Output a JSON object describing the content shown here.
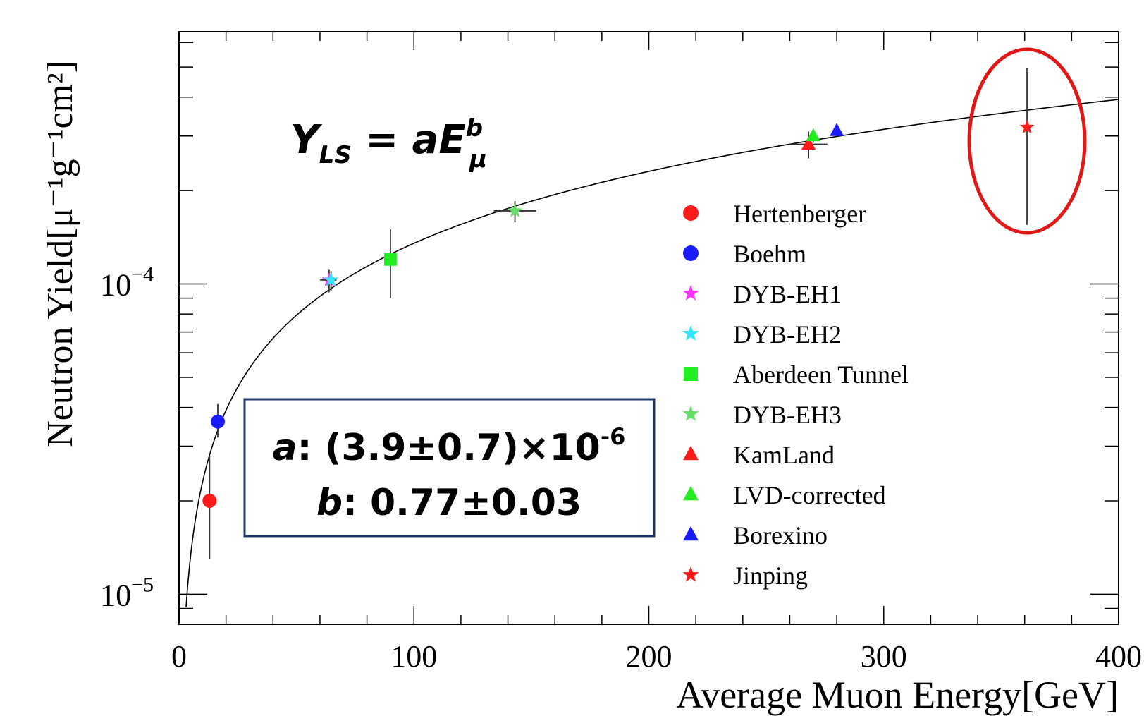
{
  "chart_data": {
    "type": "scatter",
    "xlabel": "Average Muon Energy[GeV]",
    "ylabel": "Neutron Yield[μ⁻¹g⁻¹cm²]",
    "xlim": [
      0,
      400
    ],
    "ylim": [
      8e-06,
      0.00065
    ],
    "yscale": "log",
    "xticks": [
      {
        "value": 0,
        "label": "0"
      },
      {
        "value": 100,
        "label": "100"
      },
      {
        "value": 200,
        "label": "200"
      },
      {
        "value": 300,
        "label": "300"
      },
      {
        "value": 400,
        "label": "400"
      }
    ],
    "yticks": [
      {
        "value": 0.0001,
        "mant": "10",
        "exp": "−4"
      },
      {
        "value": 1e-05,
        "mant": "10",
        "exp": "−5"
      }
    ],
    "grid": false,
    "legend_position": "right-center",
    "fit": {
      "a": 3.9e-06,
      "b": 0.77
    },
    "formula": {
      "lhs": "Y",
      "lhs_sub": "LS",
      "eq": " = ",
      "rhs": "aE",
      "rhs_sup": "b",
      "rhs_sub": "μ"
    },
    "fit_box": {
      "line1": {
        "name": "a",
        "sep": ": ",
        "value": "(3.9±0.7)×10",
        "exp": "-6"
      },
      "line2": {
        "name": "b",
        "sep": ": ",
        "value": "0.77±0.03"
      }
    },
    "series": [
      {
        "name": "Hertenberger",
        "color": "#ff1a1a",
        "marker": "circle",
        "x": 13,
        "y": 2e-05,
        "yerr": [
          1.3e-05,
          2.8e-05
        ],
        "xerr": null
      },
      {
        "name": "Boehm",
        "color": "#1a1aff",
        "marker": "circle",
        "x": 16.5,
        "y": 3.6e-05,
        "yerr": [
          3.2e-05,
          4.1e-05
        ],
        "xerr": null
      },
      {
        "name": "DYB-EH1",
        "color": "#ff33ff",
        "marker": "star",
        "x": 63.9,
        "y": 0.000103,
        "yerr": [
          9.4e-05,
          0.000111
        ],
        "xerr": [
          60,
          67
        ]
      },
      {
        "name": "DYB-EH2",
        "color": "#33e6ff",
        "marker": "star",
        "x": 64.7,
        "y": 0.000103,
        "yerr": [
          9.5e-05,
          0.00011
        ],
        "xerr": [
          62,
          67
        ]
      },
      {
        "name": "Aberdeen Tunnel",
        "color": "#22ee22",
        "marker": "square",
        "x": 90,
        "y": 0.00012,
        "yerr": [
          9e-05,
          0.00015
        ],
        "xerr": null
      },
      {
        "name": "DYB-EH3",
        "color": "#66dd66",
        "marker": "star",
        "x": 143,
        "y": 0.000172,
        "yerr": [
          0.000158,
          0.000185
        ],
        "xerr": [
          134,
          152
        ]
      },
      {
        "name": "KamLand",
        "color": "#ff1a1a",
        "marker": "triangle",
        "x": 268,
        "y": 0.000282,
        "yerr": [
          0.000254,
          0.00031
        ],
        "xerr": [
          260,
          276
        ]
      },
      {
        "name": "LVD-corrected",
        "color": "#22ee22",
        "marker": "triangle",
        "x": 270,
        "y": 0.0003,
        "yerr": [
          0.000285,
          0.000315
        ],
        "xerr": null
      },
      {
        "name": "Borexino",
        "color": "#1a1aff",
        "marker": "triangle",
        "x": 280,
        "y": 0.000312,
        "yerr": [
          0.000305,
          0.00032
        ],
        "xerr": null
      },
      {
        "name": "Jinping",
        "color": "#ff1a1a",
        "marker": "star",
        "x": 361,
        "y": 0.00032,
        "yerr": [
          0.000155,
          0.000495
        ],
        "xerr": null
      }
    ],
    "highlight": {
      "x": 361,
      "y": 0.00032,
      "color": "#e01818"
    }
  }
}
